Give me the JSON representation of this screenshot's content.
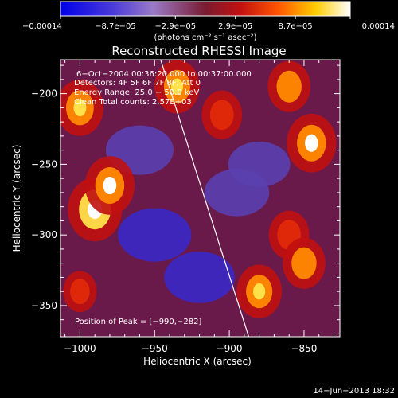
{
  "chart_data": {
    "type": "heatmap",
    "title": "Reconstructed RHESSI Image",
    "xlabel": "Heliocentric X (arcsec)",
    "ylabel": "Heliocentric Y (arcsec)",
    "xlim": [
      -1013,
      -826
    ],
    "ylim": [
      -372,
      -176
    ],
    "x_ticks": [
      -1000,
      -950,
      -900,
      -850
    ],
    "x_tick_labels": [
      "−1000",
      "−950",
      "−900",
      "−850"
    ],
    "y_ticks": [
      -200,
      -250,
      -300,
      -350
    ],
    "y_tick_labels": [
      "−200",
      "−250",
      "−300",
      "−350"
    ],
    "colorbar": {
      "min": -0.00014,
      "max": 0.00014,
      "tick_values": [
        -0.00014,
        -8.7e-05,
        -2.9e-05,
        2.9e-05,
        8.7e-05,
        0.00014
      ],
      "tick_labels": [
        "−0.00014",
        "−8.7e−05",
        "−2.9e−05",
        "2.9e−05",
        "8.7e−05",
        "0.00014"
      ],
      "units_label": "(photons cm⁻² s⁻¹ asec⁻²)"
    },
    "annotations": {
      "time_range": "6−Oct−2004 00:36:20.000 to 00:37:00.000",
      "detectors": "Detectors: 4F 5F 6F 7F 8F, Att 0",
      "energy_range": "Energy Range: 25.0 − 50.0 keV",
      "clean": "Clean    Total counts: 2.57E+03",
      "peak": "Position of Peak = [−990,−282]"
    },
    "limb_line": {
      "x": [
        -946,
        -887
      ],
      "y": [
        -176,
        -372
      ]
    },
    "bright_regions": [
      {
        "x": -1000,
        "y": -210,
        "value": 0.00011
      },
      {
        "x": -990,
        "y": -282,
        "value": 0.00014
      },
      {
        "x": -980,
        "y": -265,
        "value": 0.00012
      },
      {
        "x": -935,
        "y": -195,
        "value": 0.0001
      },
      {
        "x": -905,
        "y": -215,
        "value": 8e-05
      },
      {
        "x": -860,
        "y": -195,
        "value": 9e-05
      },
      {
        "x": -845,
        "y": -235,
        "value": 0.00012
      },
      {
        "x": -860,
        "y": -300,
        "value": 8e-05
      },
      {
        "x": -880,
        "y": -340,
        "value": 0.0001
      },
      {
        "x": -850,
        "y": -320,
        "value": 9e-05
      },
      {
        "x": -1000,
        "y": -340,
        "value": 5e-05
      }
    ],
    "dark_regions": [
      {
        "x": -960,
        "y": -240,
        "value": -7e-05
      },
      {
        "x": -950,
        "y": -300,
        "value": -9e-05
      },
      {
        "x": -920,
        "y": -330,
        "value": -8e-05
      },
      {
        "x": -895,
        "y": -270,
        "value": -6e-05
      },
      {
        "x": -880,
        "y": -250,
        "value": -5e-05
      }
    ]
  },
  "footer": {
    "timestamp": "14−Jun−2013 18:32"
  }
}
